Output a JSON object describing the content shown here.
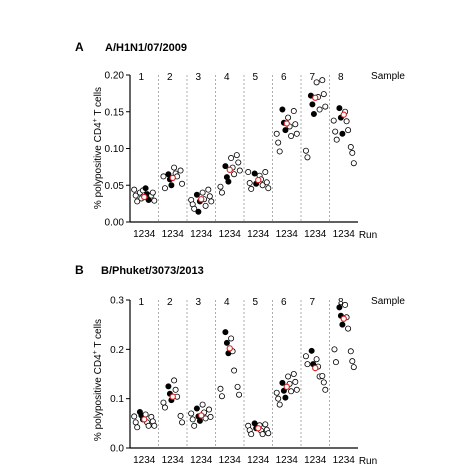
{
  "chart_data": [
    {
      "panel_label": "A",
      "title": "A/H1N1/07/2009",
      "type": "scatter",
      "ylabel": "% polypositive CD4",
      "ylabel_sup": "+",
      "ylabel_tail": " T cells",
      "ylim": [
        0,
        0.2
      ],
      "yticks": [
        "0.00",
        "0.05",
        "0.10",
        "0.15",
        "0.20"
      ],
      "ytick_values": [
        0,
        0.05,
        0.1,
        0.15,
        0.2
      ],
      "sample_header": "Sample",
      "samples": [
        "1",
        "2",
        "3",
        "4",
        "5",
        "6",
        "7",
        "8"
      ],
      "runs": [
        "1",
        "2",
        "3",
        "4"
      ],
      "run_label": "Run",
      "xtick_text": "1234",
      "points": [
        [
          [
            0.044,
            0.036,
            0.028,
            "o"
          ],
          [
            0.04,
            0.032,
            0.043,
            "o"
          ],
          [
            0.046,
            0.038,
            0.03,
            "f"
          ],
          [
            0.036,
            0.04,
            0.029,
            "o"
          ],
          [
            0.034,
            "m"
          ]
        ],
        [
          [
            0.062,
            0.046,
            "o"
          ],
          [
            0.065,
            0.058,
            0.05,
            "f"
          ],
          [
            0.074,
            0.066,
            0.062,
            "o"
          ],
          [
            0.07,
            0.052,
            "o"
          ],
          [
            0.06,
            "m"
          ]
        ],
        [
          [
            0.03,
            0.024,
            0.018,
            "o"
          ],
          [
            0.037,
            0.014,
            0.028,
            "f"
          ],
          [
            0.04,
            0.031,
            0.022,
            "o"
          ],
          [
            0.044,
            0.035,
            0.028,
            "o"
          ],
          [
            0.031,
            "m"
          ]
        ],
        [
          [
            0.048,
            0.04,
            "o"
          ],
          [
            0.076,
            0.061,
            0.055,
            "f"
          ],
          [
            0.087,
            0.074,
            0.065,
            "o"
          ],
          [
            0.091,
            0.081,
            0.07,
            "o"
          ],
          [
            0.071,
            "m"
          ]
        ],
        [
          [
            0.068,
            0.053,
            0.045,
            "o"
          ],
          [
            0.066,
            0.052,
            "f"
          ],
          [
            0.063,
            0.058,
            0.05,
            "o"
          ],
          [
            0.068,
            0.054,
            0.046,
            "o"
          ],
          [
            0.057,
            "m"
          ]
        ],
        [
          [
            0.12,
            0.108,
            0.096,
            "o"
          ],
          [
            0.153,
            0.135,
            0.125,
            "f"
          ],
          [
            0.142,
            0.13,
            0.117,
            "o"
          ],
          [
            0.151,
            0.133,
            0.12,
            "o"
          ],
          [
            0.134,
            "m"
          ]
        ],
        [
          [
            0.097,
            0.088,
            "o"
          ],
          [
            0.172,
            0.16,
            0.147,
            "f"
          ],
          [
            0.19,
            0.17,
            0.153,
            "o"
          ],
          [
            0.193,
            0.174,
            0.157,
            "o"
          ],
          [
            0.169,
            "m"
          ]
        ],
        [
          [
            0.138,
            0.123,
            0.112,
            "o"
          ],
          [
            0.155,
            0.142,
            0.12,
            "f"
          ],
          [
            0.15,
            0.137,
            0.125,
            "o"
          ],
          [
            0.102,
            0.094,
            0.08,
            "o"
          ],
          [
            0.146,
            "m"
          ]
        ]
      ]
    },
    {
      "panel_label": "B",
      "title": "B/Phuket/3073/2013",
      "type": "scatter",
      "ylabel": "% polypositive CD4",
      "ylabel_sup": "+",
      "ylabel_tail": " T cells",
      "ylim": [
        0,
        0.3
      ],
      "yticks": [
        "0.0",
        "0.1",
        "0.2",
        "0.3"
      ],
      "ytick_values": [
        0,
        0.1,
        0.2,
        0.3
      ],
      "sample_header": "Sample",
      "samples": [
        "1",
        "2",
        "3",
        "4",
        "5",
        "6",
        "7",
        "8"
      ],
      "runs": [
        "1",
        "2",
        "3",
        "4"
      ],
      "run_label": "Run",
      "xtick_text": "1234",
      "points": [
        [
          [
            0.064,
            0.052,
            0.042,
            "o"
          ],
          [
            0.073,
            0.066,
            0.058,
            "f"
          ],
          [
            0.068,
            0.052,
            0.045,
            "o"
          ],
          [
            0.063,
            0.054,
            0.045,
            "o"
          ],
          [
            0.058,
            "m"
          ]
        ],
        [
          [
            0.092,
            0.082,
            "o"
          ],
          [
            0.125,
            0.11,
            0.097,
            "f"
          ],
          [
            0.137,
            0.118,
            0.104,
            "o"
          ],
          [
            0.065,
            0.052,
            "o"
          ],
          [
            0.104,
            "m"
          ]
        ],
        [
          [
            0.07,
            0.058,
            0.045,
            "o"
          ],
          [
            0.08,
            0.064,
            0.055,
            "f"
          ],
          [
            0.088,
            0.072,
            0.06,
            "o"
          ],
          [
            0.078,
            0.063,
            "o"
          ],
          [
            0.066,
            "m"
          ]
        ],
        [
          [
            0.12,
            0.105,
            "o"
          ],
          [
            0.235,
            0.213,
            0.192,
            "f"
          ],
          [
            0.222,
            0.196,
            0.157,
            "o"
          ],
          [
            0.124,
            0.108,
            "o"
          ],
          [
            0.202,
            "m"
          ]
        ],
        [
          [
            0.045,
            0.036,
            0.028,
            "o"
          ],
          [
            0.05,
            0.04,
            "f"
          ],
          [
            0.046,
            0.035,
            0.028,
            "o"
          ],
          [
            0.048,
            0.037,
            0.03,
            "o"
          ],
          [
            0.04,
            "m"
          ]
        ],
        [
          [
            0.112,
            0.1,
            0.088,
            "o"
          ],
          [
            0.132,
            0.116,
            0.102,
            "f"
          ],
          [
            0.145,
            0.13,
            0.115,
            "o"
          ],
          [
            0.15,
            0.134,
            0.118,
            "o"
          ],
          [
            0.124,
            "m"
          ]
        ],
        [
          [
            0.186,
            0.17,
            "o"
          ],
          [
            0.197,
            0.17,
            "f"
          ],
          [
            0.18,
            0.165,
            0.145,
            "o"
          ],
          [
            0.146,
            0.133,
            0.118,
            "o"
          ],
          [
            0.162,
            "m"
          ]
        ],
        [
          [
            0.2,
            0.174,
            "o"
          ],
          [
            0.285,
            0.268,
            0.25,
            "f"
          ],
          [
            0.29,
            0.265,
            0.242,
            "o"
          ],
          [
            0.196,
            0.176,
            0.164,
            "o"
          ],
          [
            0.262,
            "m"
          ]
        ]
      ]
    }
  ]
}
